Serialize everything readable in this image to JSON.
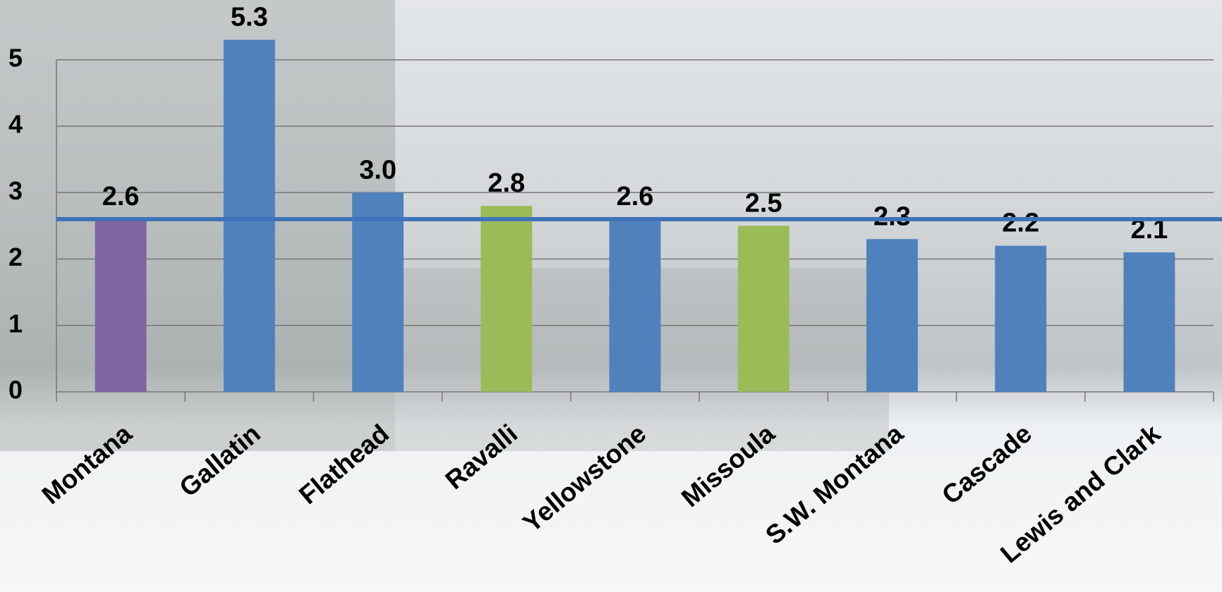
{
  "chart_data": {
    "type": "bar",
    "categories": [
      "Montana",
      "Gallatin",
      "Flathead",
      "Ravalli",
      "Yellowstone",
      "Missoula",
      "S.W. Montana",
      "Cascade",
      "Lewis and Clark"
    ],
    "values": [
      2.6,
      5.3,
      3.0,
      2.8,
      2.6,
      2.5,
      2.3,
      2.2,
      2.1
    ],
    "value_labels": [
      "2.6",
      "5.3",
      "3.0",
      "2.8",
      "2.6",
      "2.5",
      "2.3",
      "2.2",
      "2.1"
    ],
    "colors": [
      "#8064a2",
      "#4f81bd",
      "#4f81bd",
      "#9bbb59",
      "#4f81bd",
      "#9bbb59",
      "#4f81bd",
      "#4f81bd",
      "#4f81bd"
    ],
    "reference_line": {
      "value": 2.6,
      "color": "#3f72b8"
    },
    "ylim": [
      0,
      5.9
    ],
    "yticks": [
      0,
      1,
      2,
      3,
      4,
      5
    ],
    "grid": true
  }
}
